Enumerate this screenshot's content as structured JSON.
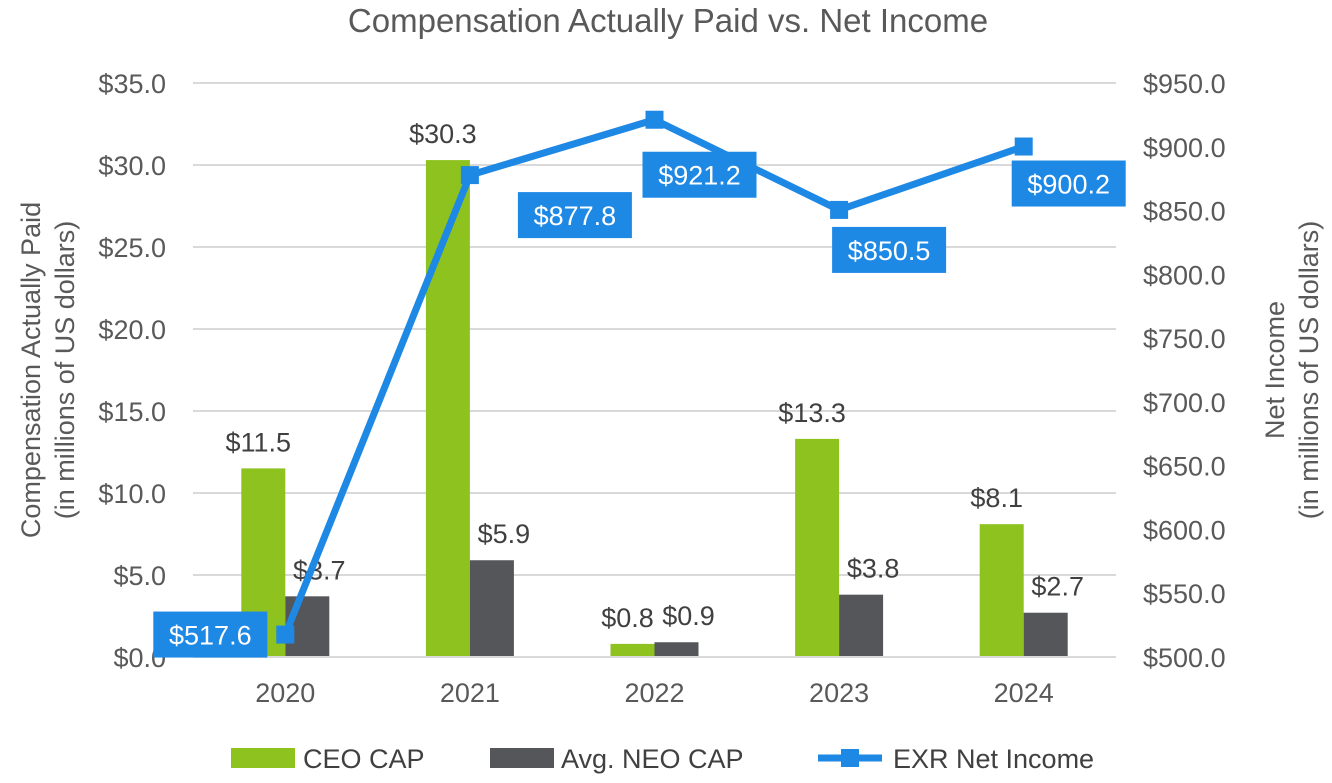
{
  "chart_data": {
    "type": "bar",
    "title": "Compensation Actually Paid vs. Net Income",
    "categories": [
      "2020",
      "2021",
      "2022",
      "2023",
      "2024"
    ],
    "y_left": {
      "label_line1": "Compensation Actually Paid",
      "label_line2": "(in millions of US dollars)",
      "min": 0,
      "max": 35,
      "step": 5,
      "ticks": [
        "$0.0",
        "$5.0",
        "$10.0",
        "$15.0",
        "$20.0",
        "$25.0",
        "$30.0",
        "$35.0"
      ]
    },
    "y_right": {
      "label_line1": "Net Income",
      "label_line2": "(in millions of US dollars)",
      "min": 500,
      "max": 950,
      "step": 50,
      "ticks": [
        "$500.0",
        "$550.0",
        "$600.0",
        "$650.0",
        "$700.0",
        "$750.0",
        "$800.0",
        "$850.0",
        "$900.0",
        "$950.0"
      ]
    },
    "series": [
      {
        "name": "CEO CAP",
        "kind": "bar",
        "axis": "left",
        "color": "#8DC21F",
        "values": [
          11.5,
          30.3,
          0.8,
          13.3,
          8.1
        ],
        "labels": [
          "$11.5",
          "$30.3",
          "$0.8",
          "$13.3",
          "$8.1"
        ]
      },
      {
        "name": "Avg. NEO CAP",
        "kind": "bar",
        "axis": "left",
        "color": "#55565A",
        "values": [
          3.7,
          5.9,
          0.9,
          3.8,
          2.7
        ],
        "labels": [
          "$3.7",
          "$5.9",
          "$0.9",
          "$3.8",
          "$2.7"
        ]
      },
      {
        "name": "EXR Net Income",
        "kind": "line",
        "axis": "right",
        "color": "#1E88E5",
        "values": [
          517.6,
          877.8,
          921.2,
          850.5,
          900.2
        ],
        "labels": [
          "$517.6",
          "$877.8",
          "$921.2",
          "$850.5",
          "$900.2"
        ]
      }
    ],
    "grid": true,
    "legend_position": "bottom"
  }
}
